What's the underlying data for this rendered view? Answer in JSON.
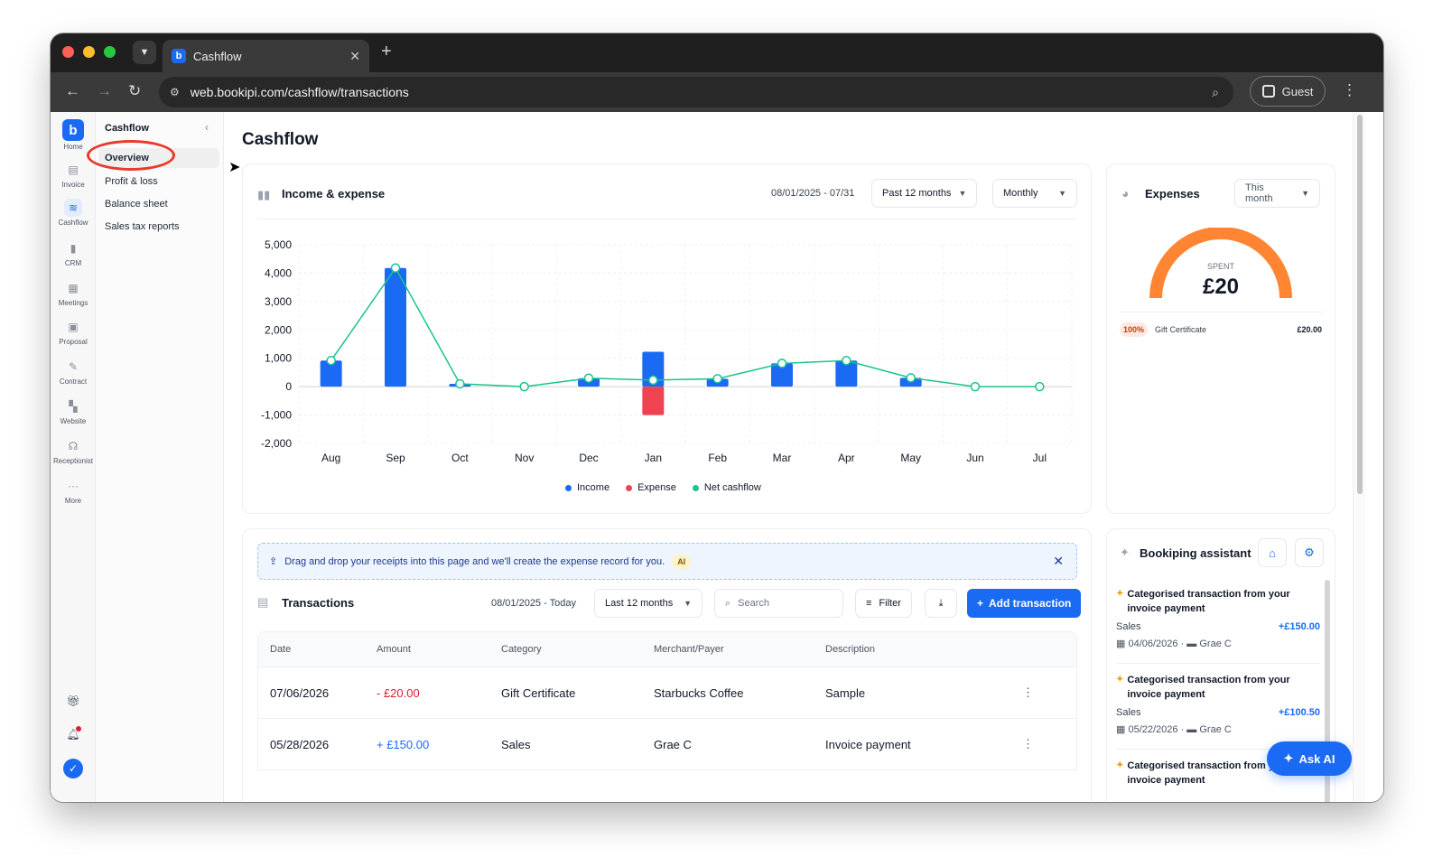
{
  "browser": {
    "tab_title": "Cashflow",
    "url": "web.bookipi.com/cashflow/transactions",
    "profile_label": "Guest"
  },
  "rail": {
    "items": [
      {
        "label": "Home",
        "icon": "home-icon"
      },
      {
        "label": "Invoice",
        "icon": "invoice-icon"
      },
      {
        "label": "Cashflow",
        "icon": "cashflow-icon"
      },
      {
        "label": "CRM",
        "icon": "crm-icon"
      },
      {
        "label": "Meetings",
        "icon": "meetings-icon"
      },
      {
        "label": "Proposal",
        "icon": "proposal-icon"
      },
      {
        "label": "Contract",
        "icon": "contract-icon"
      },
      {
        "label": "Website",
        "icon": "website-icon"
      },
      {
        "label": "Receptionist",
        "icon": "receptionist-icon"
      },
      {
        "label": "More",
        "icon": "more-icon"
      }
    ]
  },
  "subnav": {
    "title": "Cashflow",
    "items": [
      "Overview",
      "Profit & loss",
      "Balance sheet",
      "Sales tax reports"
    ]
  },
  "page": {
    "title": "Cashflow"
  },
  "income_expense": {
    "title": "Income & expense",
    "date_range": "08/01/2025 - 07/31",
    "period": "Past 12 months",
    "interval": "Monthly"
  },
  "chart_data": {
    "type": "bar",
    "categories": [
      "Aug",
      "Sep",
      "Oct",
      "Nov",
      "Dec",
      "Jan",
      "Feb",
      "Mar",
      "Apr",
      "May",
      "Jun",
      "Jul"
    ],
    "series": [
      {
        "name": "Income",
        "values": [
          920,
          4180,
          100,
          0,
          300,
          1230,
          280,
          820,
          920,
          310,
          0,
          0
        ]
      },
      {
        "name": "Expense",
        "values": [
          0,
          0,
          0,
          0,
          0,
          -1000,
          0,
          0,
          0,
          0,
          0,
          0
        ]
      },
      {
        "name": "Net cashflow",
        "values": [
          920,
          4180,
          100,
          0,
          300,
          230,
          280,
          820,
          920,
          310,
          0,
          0
        ]
      }
    ],
    "y_ticks": [
      "5,000",
      "4,000",
      "3,000",
      "2,000",
      "1,000",
      "0",
      "-1,000",
      "-2,000"
    ],
    "ylim": [
      -2000,
      5000
    ],
    "grid": true,
    "legend_position": "bottom",
    "colors": {
      "Income": "#1a6af4",
      "Expense": "#f04352",
      "Net cashflow": "#18c48f"
    }
  },
  "expenses": {
    "title": "Expenses",
    "period": "This month",
    "spent_label": "SPENT",
    "spent_value": "£20",
    "spent_fraction": 1.0,
    "breakdown": [
      {
        "percent": "100%",
        "category": "Gift Certificate",
        "amount": "£20.00"
      }
    ]
  },
  "banner": {
    "text": "Drag and drop your receipts into this page and we'll create the expense record for you.",
    "badge": "AI"
  },
  "transactions": {
    "title": "Transactions",
    "date_range": "08/01/2025 - Today",
    "period": "Last 12 months",
    "search_placeholder": "Search",
    "filter_label": "Filter",
    "add_label": "Add transaction",
    "columns": [
      "Date",
      "Amount",
      "Category",
      "Merchant/Payer",
      "Description"
    ],
    "rows": [
      {
        "date": "07/06/2026",
        "amount": "- £20.00",
        "category": "Gift Certificate",
        "merchant": "Starbucks Coffee",
        "description": "Sample"
      },
      {
        "date": "05/28/2026",
        "amount": "+ £150.00",
        "category": "Sales",
        "merchant": "Grae C",
        "description": "Invoice payment"
      }
    ]
  },
  "assistant": {
    "title": "Bookiping assistant",
    "items": [
      {
        "text": "Categorised transaction from your invoice payment",
        "category": "Sales",
        "amount": "+£150.00",
        "date": "04/06/2026",
        "payer": "Grae C"
      },
      {
        "text": "Categorised transaction from your invoice payment",
        "category": "Sales",
        "amount": "+£100.50",
        "date": "05/22/2026",
        "payer": "Grae C"
      },
      {
        "text": "Categorised transaction from your invoice payment"
      }
    ]
  },
  "ask_ai": {
    "label": "Ask AI"
  }
}
